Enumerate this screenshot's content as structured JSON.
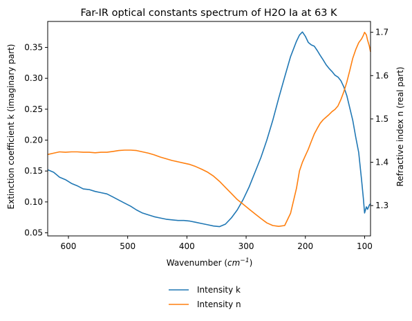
{
  "chart_data": {
    "type": "line",
    "title": "Far-IR optical constants spectrum of H2O Ia at 63 K",
    "xlabel_prefix": "Wavenumber (",
    "xlabel_unit": "cm",
    "xlabel_exp": "−1",
    "xlabel_suffix": ")",
    "ylabel_left": "Extinction coefficient k (imaginary part)",
    "ylabel_right": "Refractive index n (real part)",
    "x_reversed": true,
    "xlim": [
      635,
      90
    ],
    "ylim_left": [
      0.045,
      0.392
    ],
    "ylim_right": [
      1.23,
      1.725
    ],
    "x_ticks": [
      600,
      500,
      400,
      300,
      200,
      100
    ],
    "y_left_ticks": [
      "0.05",
      "0.10",
      "0.15",
      "0.20",
      "0.25",
      "0.30",
      "0.35"
    ],
    "y_right_ticks": [
      "1.3",
      "1.4",
      "1.5",
      "1.6",
      "1.7"
    ],
    "legend_position": "below-center",
    "series": [
      {
        "name": "Intensity k",
        "axis": "left",
        "color": "#1f77b4",
        "x": [
          635,
          625,
          615,
          605,
          595,
          585,
          575,
          565,
          555,
          545,
          535,
          525,
          515,
          505,
          495,
          485,
          475,
          465,
          455,
          445,
          435,
          425,
          415,
          405,
          395,
          385,
          375,
          365,
          355,
          345,
          335,
          325,
          315,
          305,
          295,
          285,
          275,
          265,
          255,
          245,
          235,
          225,
          215,
          210,
          205,
          200,
          195,
          190,
          185,
          180,
          175,
          170,
          165,
          160,
          155,
          150,
          145,
          140,
          135,
          130,
          125,
          120,
          115,
          110,
          105,
          102,
          100,
          97,
          95,
          92,
          90
        ],
        "y": [
          0.152,
          0.148,
          0.14,
          0.136,
          0.13,
          0.126,
          0.121,
          0.12,
          0.117,
          0.115,
          0.113,
          0.108,
          0.103,
          0.098,
          0.093,
          0.087,
          0.082,
          0.079,
          0.076,
          0.074,
          0.072,
          0.071,
          0.07,
          0.07,
          0.069,
          0.067,
          0.065,
          0.063,
          0.061,
          0.06,
          0.064,
          0.074,
          0.087,
          0.104,
          0.124,
          0.148,
          0.172,
          0.2,
          0.232,
          0.268,
          0.302,
          0.335,
          0.36,
          0.37,
          0.375,
          0.368,
          0.358,
          0.354,
          0.352,
          0.345,
          0.337,
          0.33,
          0.322,
          0.316,
          0.311,
          0.305,
          0.302,
          0.296,
          0.286,
          0.272,
          0.252,
          0.232,
          0.205,
          0.18,
          0.135,
          0.105,
          0.082,
          0.092,
          0.088,
          0.095,
          0.097
        ]
      },
      {
        "name": "Intensity n",
        "axis": "right",
        "color": "#ff7f0e",
        "x": [
          635,
          625,
          615,
          605,
          595,
          585,
          575,
          565,
          555,
          545,
          535,
          525,
          515,
          505,
          495,
          485,
          475,
          465,
          455,
          445,
          435,
          425,
          415,
          405,
          395,
          385,
          375,
          365,
          355,
          345,
          335,
          325,
          315,
          305,
          295,
          285,
          275,
          265,
          255,
          245,
          235,
          225,
          215,
          210,
          205,
          200,
          195,
          190,
          185,
          180,
          175,
          170,
          165,
          160,
          155,
          150,
          145,
          140,
          135,
          130,
          125,
          120,
          115,
          110,
          105,
          102,
          100,
          97,
          95,
          92,
          90
        ],
        "y": [
          1.418,
          1.421,
          1.424,
          1.423,
          1.424,
          1.424,
          1.423,
          1.423,
          1.422,
          1.423,
          1.423,
          1.425,
          1.427,
          1.428,
          1.428,
          1.427,
          1.424,
          1.421,
          1.417,
          1.412,
          1.408,
          1.404,
          1.401,
          1.398,
          1.395,
          1.39,
          1.384,
          1.377,
          1.368,
          1.356,
          1.342,
          1.328,
          1.314,
          1.303,
          1.292,
          1.281,
          1.27,
          1.26,
          1.254,
          1.252,
          1.254,
          1.282,
          1.34,
          1.38,
          1.4,
          1.415,
          1.43,
          1.448,
          1.465,
          1.478,
          1.49,
          1.498,
          1.504,
          1.51,
          1.517,
          1.522,
          1.53,
          1.545,
          1.563,
          1.585,
          1.612,
          1.64,
          1.66,
          1.676,
          1.685,
          1.693,
          1.7,
          1.694,
          1.682,
          1.668,
          1.655
        ]
      }
    ]
  }
}
